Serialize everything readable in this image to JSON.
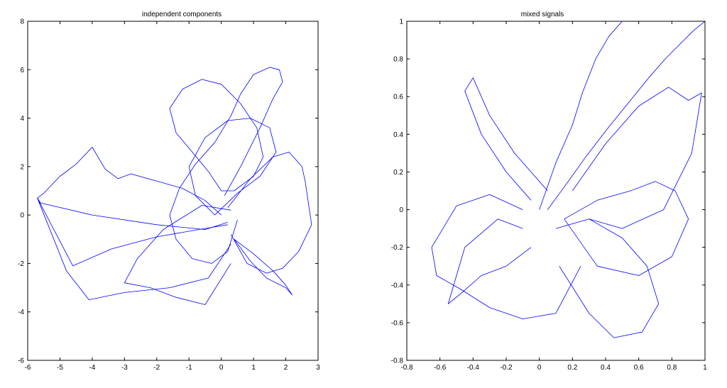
{
  "chart_data": [
    {
      "type": "line",
      "title": "independent components",
      "xlabel": "",
      "ylabel": "",
      "xlim": [
        -6,
        3
      ],
      "ylim": [
        -6,
        8
      ],
      "xticks": [
        -6,
        -5,
        -4,
        -3,
        -2,
        -1,
        0,
        1,
        2,
        3
      ],
      "yticks": [
        -6,
        -4,
        -2,
        0,
        2,
        4,
        6,
        8
      ],
      "grid": false,
      "color": "#0000ff",
      "series": [
        {
          "x": [
            0.1,
            0.6,
            1.2,
            1.6,
            1.9,
            1.8,
            1.5,
            1.0,
            0.6,
            0.3,
            -0.2,
            -0.8,
            -1.3,
            -1.6,
            -1.4,
            -0.9,
            -0.3,
            0.2,
            0.5
          ],
          "y": [
            0.8,
            2.0,
            3.6,
            4.8,
            5.5,
            6.0,
            6.1,
            5.8,
            5.0,
            4.1,
            3.0,
            2.1,
            1.1,
            0.0,
            -1.0,
            -1.8,
            -2.0,
            -1.5,
            -0.2
          ]
        },
        {
          "x": [
            0.0,
            -0.5,
            -1.2,
            -2.0,
            -2.8,
            -3.2,
            -3.6,
            -4.0,
            -4.5,
            -5.0,
            -5.5,
            -5.7,
            -5.6,
            -4.0,
            -2.0,
            -0.5,
            0.2
          ],
          "y": [
            0.0,
            0.6,
            1.1,
            1.4,
            1.7,
            1.5,
            1.9,
            2.8,
            2.1,
            1.6,
            0.9,
            0.7,
            0.5,
            0.0,
            -0.4,
            -0.6,
            -0.3
          ]
        },
        {
          "x": [
            0.2,
            -0.7,
            -2.0,
            -3.4,
            -4.6,
            -5.7,
            -4.8,
            -4.1,
            -3.0,
            -1.6,
            -0.4,
            0.3
          ],
          "y": [
            -0.4,
            -0.6,
            -0.9,
            -1.4,
            -2.1,
            0.7,
            -2.3,
            -3.5,
            -3.2,
            -3.0,
            -2.6,
            -1.2
          ]
        },
        {
          "x": [
            0.3,
            -0.6,
            -1.8,
            -2.6,
            -3.0,
            -2.2,
            -1.4,
            -0.5,
            0.3
          ],
          "y": [
            0.2,
            0.4,
            -0.6,
            -1.8,
            -2.8,
            -3.0,
            -3.4,
            -3.7,
            -2.0
          ]
        },
        {
          "x": [
            0.2,
            0.9,
            1.6,
            2.1,
            2.5,
            2.6,
            2.8,
            2.4,
            1.9,
            1.4,
            0.8,
            0.3
          ],
          "y": [
            0.3,
            1.5,
            2.4,
            2.6,
            2.0,
            1.4,
            -0.4,
            -1.5,
            -2.2,
            -2.4,
            -2.0,
            -0.8
          ]
        },
        {
          "x": [
            0.0,
            -0.4,
            -0.9,
            -1.4,
            -1.6,
            -1.2,
            -0.6,
            0.0,
            0.6,
            1.1,
            1.3,
            1.0,
            0.4,
            0.0
          ],
          "y": [
            1.0,
            1.8,
            2.6,
            3.4,
            4.4,
            5.2,
            5.6,
            5.4,
            4.6,
            3.6,
            2.4,
            1.6,
            1.0,
            1.0
          ]
        },
        {
          "x": [
            0.4,
            1.0,
            1.6,
            2.0,
            2.2,
            2.0,
            1.4,
            0.9,
            0.4
          ],
          "y": [
            -1.0,
            -1.6,
            -2.3,
            -2.9,
            -3.3,
            -3.0,
            -2.6,
            -1.9,
            -1.0
          ]
        },
        {
          "x": [
            -0.2,
            0.5,
            1.2,
            1.7,
            1.5,
            0.9,
            0.2,
            -0.5,
            -1.0,
            -0.8,
            -0.2
          ],
          "y": [
            0.0,
            0.9,
            1.6,
            2.6,
            3.6,
            4.0,
            3.9,
            3.2,
            2.0,
            0.8,
            0.0
          ]
        }
      ]
    },
    {
      "type": "line",
      "title": "mixed signals",
      "xlabel": "",
      "ylabel": "",
      "xlim": [
        -0.8,
        1
      ],
      "ylim": [
        -0.8,
        1
      ],
      "xticks": [
        -0.8,
        -0.6,
        -0.4,
        -0.2,
        0,
        0.2,
        0.4,
        0.6,
        0.8,
        1
      ],
      "yticks": [
        -0.8,
        -0.6,
        -0.4,
        -0.2,
        0,
        0.2,
        0.4,
        0.6,
        0.8,
        1
      ],
      "grid": false,
      "color": "#0000ff",
      "series": [
        {
          "x": [
            0.05,
            0.15,
            0.28,
            0.42,
            0.55,
            0.66,
            0.76,
            0.85,
            0.93,
            1.0
          ],
          "y": [
            0.0,
            0.12,
            0.28,
            0.44,
            0.58,
            0.7,
            0.8,
            0.88,
            0.95,
            1.0
          ]
        },
        {
          "x": [
            0.0,
            0.1,
            0.2,
            0.26,
            0.34,
            0.42,
            0.5
          ],
          "y": [
            0.0,
            0.25,
            0.45,
            0.62,
            0.8,
            0.92,
            1.0
          ]
        },
        {
          "x": [
            -0.1,
            -0.3,
            -0.5,
            -0.65,
            -0.62,
            -0.48,
            -0.3,
            -0.1,
            0.1,
            0.25
          ],
          "y": [
            0.0,
            0.08,
            0.02,
            -0.2,
            -0.35,
            -0.42,
            -0.52,
            -0.58,
            -0.55,
            -0.3
          ]
        },
        {
          "x": [
            0.1,
            0.3,
            0.5,
            0.65,
            0.72,
            0.62,
            0.45,
            0.3,
            0.12
          ],
          "y": [
            -0.1,
            -0.05,
            -0.15,
            -0.3,
            -0.5,
            -0.65,
            -0.68,
            -0.55,
            -0.3
          ]
        },
        {
          "x": [
            0.05,
            -0.15,
            -0.3,
            -0.4,
            -0.45,
            -0.35,
            -0.2,
            -0.05
          ],
          "y": [
            0.1,
            0.3,
            0.5,
            0.7,
            0.63,
            0.4,
            0.2,
            0.05
          ]
        },
        {
          "x": [
            0.2,
            0.4,
            0.6,
            0.78,
            0.9,
            0.98,
            0.92,
            0.75,
            0.5,
            0.3
          ],
          "y": [
            0.1,
            0.35,
            0.55,
            0.65,
            0.58,
            0.62,
            0.3,
            0.0,
            -0.1,
            -0.05
          ]
        },
        {
          "x": [
            -0.05,
            -0.2,
            -0.35,
            -0.48,
            -0.55,
            -0.45,
            -0.25,
            -0.1
          ],
          "y": [
            -0.2,
            -0.3,
            -0.35,
            -0.45,
            -0.5,
            -0.2,
            -0.05,
            -0.1
          ]
        },
        {
          "x": [
            0.15,
            0.35,
            0.55,
            0.7,
            0.82,
            0.9,
            0.8,
            0.6,
            0.35,
            0.15
          ],
          "y": [
            -0.05,
            0.05,
            0.1,
            0.15,
            0.1,
            -0.05,
            -0.25,
            -0.35,
            -0.3,
            -0.05
          ]
        }
      ]
    }
  ]
}
